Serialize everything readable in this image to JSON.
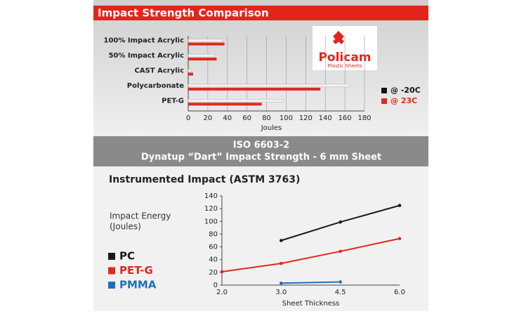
{
  "header": {
    "title": "Impact Strength Comparison"
  },
  "logo": {
    "name": "Policam",
    "tagline": "Plastic Sheets"
  },
  "banner": {
    "lines": [
      "ISO 6603-2",
      "Dynatup “Dart” Impact Strength - 6 mm Sheet"
    ]
  },
  "chart_data": [
    {
      "type": "hbar",
      "categories": [
        "100% Impact Acrylic",
        "50% Impact Acrylic",
        "CAST Acrylic",
        "Polycarbonate",
        "PET-G"
      ],
      "series": [
        {
          "name": "@ -20C",
          "color": "#f2f2f2",
          "legend_color": "#111111",
          "values": [
            35,
            27,
            3,
            165,
            97
          ]
        },
        {
          "name": "@ 23C",
          "color": "#e0281e",
          "legend_color": "#e0281e",
          "values": [
            37,
            29,
            5,
            135,
            75
          ]
        }
      ],
      "xlim": [
        0,
        180
      ],
      "xticks": [
        0,
        20,
        40,
        60,
        80,
        100,
        120,
        140,
        160,
        180
      ],
      "xlabel": "Joules",
      "grid": true
    },
    {
      "type": "line",
      "title": "Instrumented Impact (ASTM 3763)",
      "ylabel": [
        "Impact Energy",
        "(Joules)"
      ],
      "xlabel": "Sheet Thickness",
      "categories": [
        "2.0",
        "3.0",
        "4.5",
        "6.0"
      ],
      "series": [
        {
          "name": "PC",
          "color": "#1a1a1a",
          "values": [
            null,
            70,
            99,
            125
          ]
        },
        {
          "name": "PET-G",
          "color": "#e0281e",
          "values": [
            21,
            34,
            53,
            73
          ]
        },
        {
          "name": "PMMA",
          "color": "#1e6fc0",
          "values": [
            null,
            3,
            5,
            null
          ]
        }
      ],
      "ylim": [
        0,
        140
      ],
      "yticks": [
        0,
        20,
        40,
        60,
        80,
        100,
        120,
        140
      ]
    }
  ]
}
